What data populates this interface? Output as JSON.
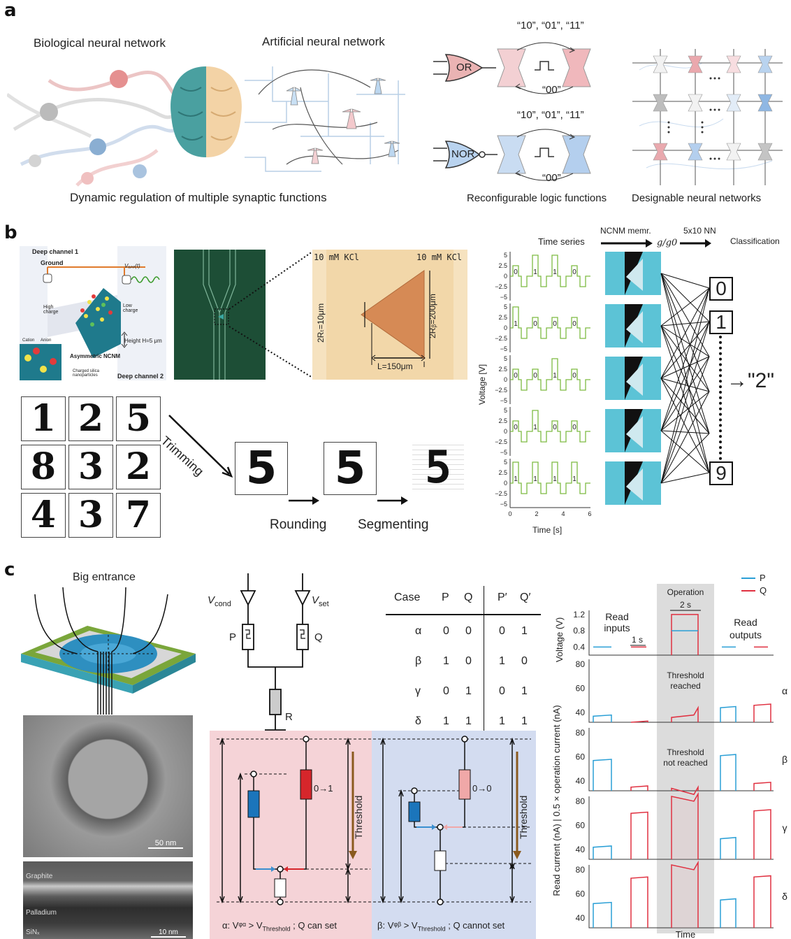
{
  "panel_a": {
    "label": "a",
    "bio_title": "Biological neural network",
    "ann_title": "Artificial neural network",
    "caption_left": "Dynamic regulation of multiple synaptic functions",
    "caption_mid": "Reconfigurable logic functions",
    "caption_right": "Designable neural networks",
    "or_label": "OR",
    "nor_label": "NOR",
    "inputs_top": "“10”, “01”, “11”",
    "input_zero": "“00”",
    "inputs_top2": "“10”, “01”, “11”",
    "input_zero2": "“00”"
  },
  "panel_b": {
    "label": "b",
    "schematic": {
      "deep1": "Deep channel 1",
      "ground": "Ground",
      "vapp": "Vₐₚₚ(t)",
      "high": "High charge",
      "low": "Low charge",
      "height": "Height H=5 μm",
      "cation": "Cation",
      "anion": "Anion",
      "asym": "Asymmetric NCNM",
      "charged": "Charged silica nanoparticles",
      "deep2": "Deep channel 2"
    },
    "micro": {
      "kcl_left": "10 mM KCl",
      "kcl_right": "10 mM KCl",
      "rt": "2Rₜ=10μm",
      "rb": "2Rᵦ=200μm",
      "len": "L=150μm"
    },
    "digits": [
      "1",
      "2",
      "5",
      "8",
      "3",
      "2",
      "4",
      "3",
      "7"
    ],
    "trimming": "Trimming",
    "rounding": "Rounding",
    "segmenting": "Segmenting",
    "big_digit": "5",
    "ts_title": "Time series",
    "ncnm": "NCNM memr.",
    "gg0": "g/g0",
    "nn": "5x10 NN",
    "classification": "Classification",
    "out_labels": [
      "0",
      "1",
      "9"
    ],
    "result": "→\"2\"",
    "ylabel": "Voltage [V]",
    "xlabel": "Time [s]",
    "xticks": [
      "0",
      "2",
      "4",
      "6"
    ],
    "yticks": [
      "5",
      "2.5",
      "0",
      "−2.5",
      "−5"
    ],
    "bits": [
      [
        "0",
        "1",
        "1",
        "0"
      ],
      [
        "1",
        "0",
        "0",
        "0"
      ],
      [
        "0",
        "0",
        "1",
        "0"
      ],
      [
        "0",
        "1",
        "0",
        "0"
      ],
      [
        "1",
        "1",
        "1",
        "1"
      ]
    ]
  },
  "panel_c": {
    "label": "c",
    "big_entrance": "Big entrance",
    "scale1": "50 nm",
    "scale2": "10 nm",
    "graphite": "Graphite",
    "palladium": "Palladium",
    "sin": "SiNₓ",
    "circuit": {
      "vcond": "V",
      "vcond_sub": "cond",
      "vset": "V",
      "vset_sub": "set",
      "p": "P",
      "q": "Q",
      "r": "R"
    },
    "table": {
      "headers": [
        "Case",
        "P",
        "Q",
        "P′",
        "Q′"
      ],
      "rows": [
        [
          "α",
          "0",
          "0",
          "0",
          "1"
        ],
        [
          "β",
          "1",
          "0",
          "1",
          "0"
        ],
        [
          "γ",
          "0",
          "1",
          "0",
          "1"
        ],
        [
          "δ",
          "1",
          "1",
          "1",
          "1"
        ]
      ]
    },
    "alpha_caption": "α:  Vᵠᵅ > V",
    "alpha_caption_sub": "Threshold",
    "alpha_caption_end": " ; Q can set",
    "beta_caption": "β:  Vᵠᵝ > V",
    "beta_caption_sub": "Threshold",
    "beta_caption_end": " ; Q cannot set",
    "threshold": "Threshold",
    "zero_to_one": "0→1",
    "zero_to_zero": "0→0",
    "chart": {
      "legend": [
        "P",
        "Q"
      ],
      "operation": "Operation",
      "two_s": "2 s",
      "one_s": "1 s",
      "read_inputs": "Read inputs",
      "read_outputs": "Read outputs",
      "threshold_reached": "Threshold reached",
      "threshold_not": "Threshold not reached",
      "v_label": "Voltage (V)",
      "i_label": "Read current (nA) | 0.5 × operation current (nA)",
      "x_label": "Time",
      "v_ticks": [
        "1.2",
        "0.8",
        "0.4"
      ],
      "i_ticks": [
        "80",
        "60",
        "40"
      ],
      "cases": [
        "α",
        "β",
        "γ",
        "δ"
      ]
    }
  },
  "colors": {
    "p": "#2a9fd6",
    "q": "#e03040",
    "green": "#7dbb42",
    "cyan": "#5cc3d6",
    "pink": "#f5d3d7",
    "blue": "#d3dcf0"
  },
  "chart_data": {
    "type": "line",
    "title": "",
    "xlabel": "Time",
    "ylabel": "Read current (nA) | 0.5 × operation current (nA)",
    "series": [
      {
        "name": "P",
        "values": [
          37,
          44,
          57,
          61,
          42,
          49,
          52,
          55
        ]
      },
      {
        "name": "Q",
        "values": [
          32,
          46,
          35,
          38,
          70,
          72,
          73,
          74
        ]
      }
    ],
    "ylim": [
      30,
      90
    ]
  }
}
